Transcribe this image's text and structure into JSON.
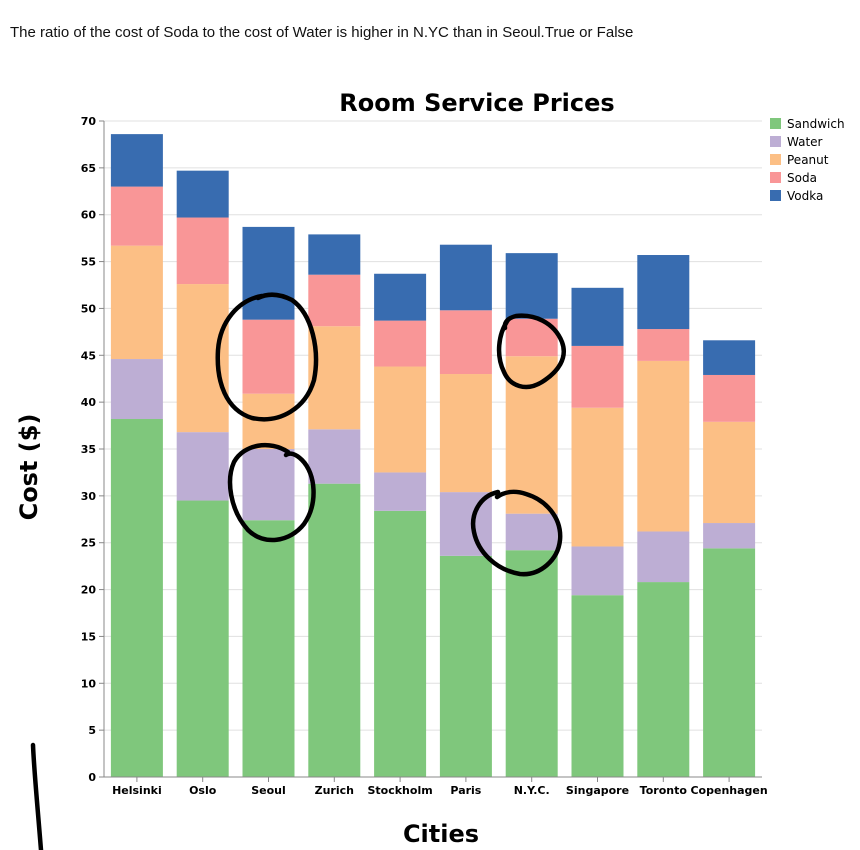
{
  "question": "The ratio of the cost of Soda to the cost of Water is higher in N.YC than in Seoul.True or False",
  "chart_data": {
    "type": "bar",
    "stacked": true,
    "title": "Room Service Prices",
    "xlabel": "Cities",
    "ylabel": "Cost ($)",
    "ylim": [
      0,
      70
    ],
    "yticks": [
      0,
      5,
      10,
      15,
      20,
      25,
      30,
      35,
      40,
      45,
      50,
      55,
      60,
      65,
      70
    ],
    "grid": true,
    "legend_position": "top-right",
    "categories": [
      "Helsinki",
      "Oslo",
      "Seoul",
      "Zurich",
      "Stockholm",
      "Paris",
      "N.Y.C.",
      "Singapore",
      "Toronto",
      "Copenhagen"
    ],
    "series": [
      {
        "name": "Sandwich",
        "color": "#7fc77c",
        "values": [
          38.2,
          29.5,
          27.4,
          31.3,
          28.4,
          23.6,
          24.2,
          19.4,
          20.8,
          24.4
        ]
      },
      {
        "name": "Water",
        "color": "#bdaed4",
        "values": [
          6.4,
          7.3,
          7.6,
          5.8,
          4.1,
          6.8,
          3.9,
          5.2,
          5.4,
          2.7
        ]
      },
      {
        "name": "Peanut",
        "color": "#fcbf85",
        "values": [
          12.1,
          15.8,
          5.9,
          11.0,
          11.3,
          12.6,
          16.8,
          14.8,
          18.2,
          10.8
        ]
      },
      {
        "name": "Soda",
        "color": "#f99697",
        "values": [
          6.3,
          7.1,
          7.9,
          5.5,
          4.9,
          6.8,
          4.0,
          6.6,
          3.4,
          5.0
        ]
      },
      {
        "name": "Vodka",
        "color": "#386cb0",
        "values": [
          5.6,
          5.0,
          9.9,
          4.3,
          5.0,
          7.0,
          7.0,
          6.2,
          7.9,
          3.7
        ]
      }
    ],
    "annotations": [
      {
        "type": "hand-drawn-circle",
        "target": "Seoul Soda"
      },
      {
        "type": "hand-drawn-circle",
        "target": "Seoul Water"
      },
      {
        "type": "hand-drawn-circle",
        "target": "N.Y.C. Soda"
      },
      {
        "type": "hand-drawn-circle",
        "target": "N.Y.C. Water"
      }
    ]
  }
}
